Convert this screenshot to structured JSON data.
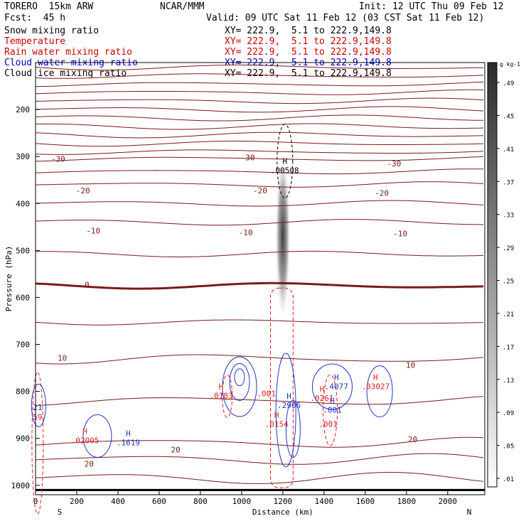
{
  "header": {
    "model": "TORERO  15km ARW",
    "center": "NCAR/MMM",
    "init": "Init: 12 UTC Thu 09 Feb 12",
    "fcst": "Fcst:  45 h",
    "valid": "Valid: 09 UTC Sat 11 Feb 12 (03 CST Sat 11 Feb 12)"
  },
  "legend": [
    {
      "label": "Snow mixing ratio",
      "xy": "XY= 222.9,  5.1 to 222.9,149.8",
      "color": "#000000"
    },
    {
      "label": "Temperature",
      "xy": "XY= 222.9,  5.1 to 222.9,149.8",
      "color": "#cc0000"
    },
    {
      "label": "Rain water mixing ratio",
      "xy": "XY= 222.9,  5.1 to 222.9,149.8",
      "color": "#cc0000"
    },
    {
      "label": "Cloud water mixing ratio",
      "xy": "XY= 222.9,  5.1 to 222.9,149.8",
      "color": "#0000cc"
    },
    {
      "label": "Cloud ice mixing ratio",
      "xy": "XY= 222.9,  5.1 to 222.9,149.8",
      "color": "#000000"
    }
  ],
  "colors": {
    "temperature": "#7a1a1a",
    "rain": "#dd2222",
    "cloud_water": "#2233cc",
    "ice": "#000000"
  },
  "chart_data": {
    "type": "cross-section contour",
    "xlabel": "Distance (km)",
    "ylabel": "Pressure (hPa)",
    "xlim": [
      0,
      2180
    ],
    "ylim": [
      1020,
      100
    ],
    "x_ticks": [
      0,
      200,
      400,
      600,
      800,
      1000,
      1200,
      1400,
      1600,
      1800,
      2000
    ],
    "y_ticks": [
      200,
      300,
      400,
      500,
      600,
      700,
      800,
      900,
      1000
    ],
    "ends": {
      "left": "S",
      "right": "N"
    },
    "colorbar": {
      "unit": "g kg-1",
      "ticks": [
        ".01",
        ".05",
        ".09",
        ".13",
        ".17",
        ".21",
        ".25",
        ".29",
        ".33",
        ".37",
        ".41",
        ".45",
        ".49"
      ]
    },
    "temperature_isotherms": [
      {
        "value": -30,
        "pressure": 305
      },
      {
        "value": -20,
        "pressure": 360
      },
      {
        "value": -10,
        "pressure": 440
      },
      {
        "value": 0,
        "pressure": 575
      },
      {
        "value": 10,
        "pressure": 730
      },
      {
        "value": 20,
        "pressure": 910
      }
    ],
    "temperature_labels": [
      {
        "text": "-30",
        "x": 110,
        "p": 305
      },
      {
        "text": "-30",
        "x": 1030,
        "p": 302
      },
      {
        "text": "-30",
        "x": 1740,
        "p": 315
      },
      {
        "text": "-20",
        "x": 230,
        "p": 372
      },
      {
        "text": "-20",
        "x": 1090,
        "p": 372
      },
      {
        "text": "-20",
        "x": 1680,
        "p": 378
      },
      {
        "text": "-10",
        "x": 280,
        "p": 458
      },
      {
        "text": "-10",
        "x": 1020,
        "p": 462
      },
      {
        "text": "-10",
        "x": 1770,
        "p": 464
      },
      {
        "text": "0",
        "x": 250,
        "p": 573
      },
      {
        "text": "10",
        "x": 130,
        "p": 729
      },
      {
        "text": "10",
        "x": 1820,
        "p": 744
      },
      {
        "text": "20",
        "x": 680,
        "p": 924
      },
      {
        "text": "20",
        "x": 1830,
        "p": 902
      },
      {
        "text": "20",
        "x": 260,
        "p": 954
      }
    ],
    "maxima_labels": [
      {
        "mark": "H",
        "value": ".00508",
        "x": 1210,
        "p": 320,
        "series": "ice"
      },
      {
        "mark": "H",
        "value": ".2906",
        "x": 1230,
        "p": 820,
        "series": "cloud_water"
      },
      {
        "mark": "H",
        "value": ".4077",
        "x": 1460,
        "p": 780,
        "series": "cloud_water"
      },
      {
        "mark": "H",
        "value": ".1619",
        "x": 450,
        "p": 900,
        "series": "cloud_water"
      },
      {
        "mark": "H",
        "value": ".001",
        "x": 1440,
        "p": 830,
        "series": "cloud_water"
      },
      {
        "mark": "H",
        "value": ".0183",
        "x": 900,
        "p": 800,
        "series": "rain"
      },
      {
        "mark": "H",
        "value": ".0261",
        "x": 1390,
        "p": 805,
        "series": "rain"
      },
      {
        "mark": "H",
        "value": ".03027",
        "x": 1650,
        "p": 780,
        "series": "rain"
      },
      {
        "mark": "H",
        "value": ".02005",
        "x": 240,
        "p": 895,
        "series": "rain"
      },
      {
        "mark": "",
        "value": ".001",
        "x": 1120,
        "p": 795,
        "series": "rain"
      },
      {
        "mark": "",
        "value": ".001",
        "x": 1420,
        "p": 860,
        "series": "rain"
      },
      {
        "mark": "H",
        "value": ".0154",
        "x": 1170,
        "p": 860,
        "series": "rain"
      }
    ],
    "edge_labels": [
      {
        "text": "21",
        "x": 10,
        "p": 840,
        "series": "cloud_water"
      },
      {
        "text": "59",
        "x": 10,
        "p": 860,
        "series": "rain"
      }
    ],
    "snow_max_gkg": 0.49
  }
}
